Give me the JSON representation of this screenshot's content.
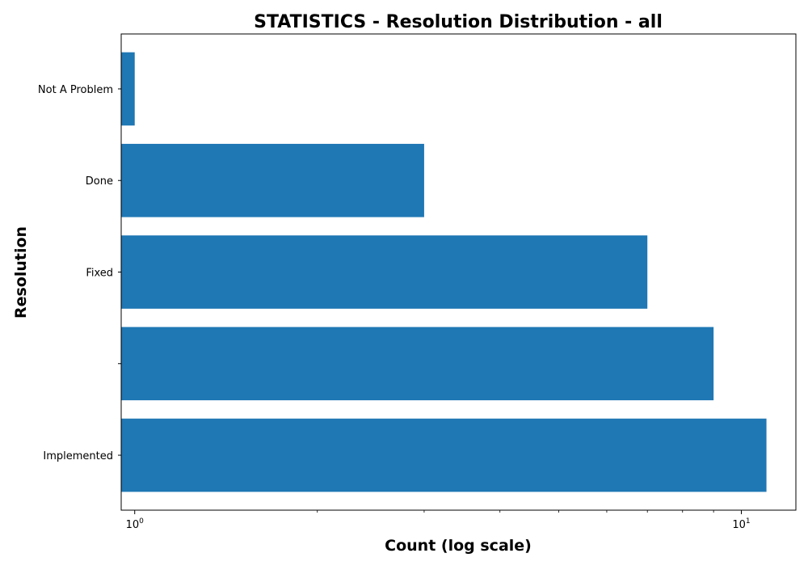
{
  "chart_data": {
    "type": "bar",
    "orientation": "horizontal",
    "title": "STATISTICS - Resolution Distribution - all",
    "xlabel": "Count (log scale)",
    "ylabel": "Resolution",
    "x_scale": "log",
    "xlim": [
      0.95,
      12.3
    ],
    "x_major_ticks": [
      {
        "value": 1,
        "base": "10",
        "exp": "0"
      },
      {
        "value": 10,
        "base": "10",
        "exp": "1"
      }
    ],
    "categories": [
      "Not A Problem",
      "Done",
      "Fixed",
      "",
      "Implemented"
    ],
    "values": [
      1,
      3,
      7,
      9,
      11
    ],
    "bar_color": "#1f77b4",
    "grid": false,
    "legend": "none"
  }
}
